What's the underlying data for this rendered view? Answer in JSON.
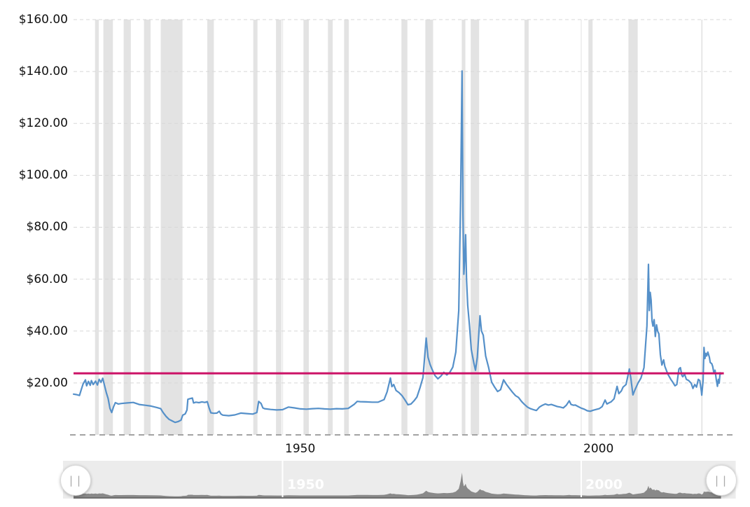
{
  "chart": {
    "y_axis_labels": [
      "$160.00",
      "$140.00",
      "$120.00",
      "$100.00",
      "$80.00",
      "$60.00",
      "$40.00",
      "$20.00"
    ],
    "x_axis_labels": [
      "1950",
      "2000"
    ]
  },
  "navigator": {
    "labels": [
      "1950",
      "2000"
    ],
    "handle_glyph": "||"
  },
  "colors": {
    "price_line": "#5590c9",
    "current_price_line": "#cc1166",
    "recession_band": "#e3e3e3",
    "gridline": "#d7d7d7",
    "axis_line": "#a3a3a3",
    "nav_track": "#ececec",
    "nav_track_unselected": "#f5f5f5",
    "nav_series": "#898989",
    "nav_baseline": "#6f6f6f",
    "axis_text": "#111111",
    "nav_label_text": "#ffffff"
  },
  "chart_data": {
    "type": "line",
    "title": "",
    "x_unit": "year",
    "xlim": [
      1915,
      2025
    ],
    "ylim": [
      0,
      160
    ],
    "x_ticks": [
      1950,
      2000
    ],
    "y_ticks": [
      160,
      140,
      120,
      100,
      80,
      60,
      40,
      20
    ],
    "y_tick_labels": [
      "$160.00",
      "$140.00",
      "$120.00",
      "$100.00",
      "$80.00",
      "$60.00",
      "$40.00",
      "$20.00"
    ],
    "grid": "dashed",
    "legend": "none",
    "current_price_line_value": 23.7,
    "recession_bands": [
      [
        1918.6,
        1919.25
      ],
      [
        1920.0,
        1921.6
      ],
      [
        1923.4,
        1924.6
      ],
      [
        1926.8,
        1927.9
      ],
      [
        1929.6,
        1933.25
      ],
      [
        1937.4,
        1938.5
      ],
      [
        1945.1,
        1945.8
      ],
      [
        1948.9,
        1949.8
      ],
      [
        1953.5,
        1954.4
      ],
      [
        1957.6,
        1958.4
      ],
      [
        1960.3,
        1961.1
      ],
      [
        1969.9,
        1970.9
      ],
      [
        1973.9,
        1975.2
      ],
      [
        1980.0,
        1980.6
      ],
      [
        1981.5,
        1982.9
      ],
      [
        1990.5,
        1991.2
      ],
      [
        2001.2,
        2001.9
      ],
      [
        2007.9,
        2009.45
      ],
      [
        2020.1,
        2020.3
      ]
    ],
    "series": [
      {
        "name": "price-usd-per-oz-inflation-adjusted",
        "points": [
          [
            1915,
            15.7
          ],
          [
            1915.5,
            15.5
          ],
          [
            1916,
            15.2
          ],
          [
            1916.3,
            17.4
          ],
          [
            1916.6,
            19.6
          ],
          [
            1917,
            21.2
          ],
          [
            1917.2,
            18.9
          ],
          [
            1917.5,
            20.6
          ],
          [
            1917.8,
            19.1
          ],
          [
            1918,
            20.9
          ],
          [
            1918.3,
            19.4
          ],
          [
            1918.7,
            20.7
          ],
          [
            1919,
            19.2
          ],
          [
            1919.3,
            21.4
          ],
          [
            1919.6,
            20.3
          ],
          [
            1919.9,
            21.8
          ],
          [
            1920.2,
            19.0
          ],
          [
            1920.5,
            16.2
          ],
          [
            1920.8,
            14.0
          ],
          [
            1921.1,
            10.2
          ],
          [
            1921.4,
            8.6
          ],
          [
            1921.7,
            10.8
          ],
          [
            1922,
            12.4
          ],
          [
            1922.5,
            11.9
          ],
          [
            1923,
            12.1
          ],
          [
            1924,
            12.3
          ],
          [
            1925,
            12.5
          ],
          [
            1926,
            11.7
          ],
          [
            1927,
            11.4
          ],
          [
            1928,
            11.1
          ],
          [
            1929,
            10.5
          ],
          [
            1929.6,
            10.1
          ],
          [
            1930,
            8.6
          ],
          [
            1930.5,
            7.1
          ],
          [
            1931,
            6.0
          ],
          [
            1931.5,
            5.4
          ],
          [
            1932,
            4.8
          ],
          [
            1932.5,
            5.1
          ],
          [
            1933,
            5.7
          ],
          [
            1933.3,
            7.6
          ],
          [
            1933.7,
            8.1
          ],
          [
            1934,
            9.6
          ],
          [
            1934.15,
            13.7
          ],
          [
            1934.6,
            14.0
          ],
          [
            1934.9,
            14.2
          ],
          [
            1935.1,
            12.3
          ],
          [
            1935.5,
            12.6
          ],
          [
            1936,
            12.4
          ],
          [
            1936.5,
            12.7
          ],
          [
            1937,
            12.5
          ],
          [
            1937.4,
            12.8
          ],
          [
            1937.7,
            10.4
          ],
          [
            1938,
            8.5
          ],
          [
            1938.5,
            8.3
          ],
          [
            1939,
            8.4
          ],
          [
            1939.4,
            9.1
          ],
          [
            1939.7,
            8.0
          ],
          [
            1940,
            7.6
          ],
          [
            1941,
            7.4
          ],
          [
            1942,
            7.7
          ],
          [
            1943,
            8.4
          ],
          [
            1944,
            8.2
          ],
          [
            1945,
            8.0
          ],
          [
            1945.7,
            8.6
          ],
          [
            1946,
            12.9
          ],
          [
            1946.4,
            12.1
          ],
          [
            1946.7,
            10.4
          ],
          [
            1947,
            10.1
          ],
          [
            1948,
            9.8
          ],
          [
            1949,
            9.6
          ],
          [
            1950,
            9.7
          ],
          [
            1950.6,
            10.3
          ],
          [
            1951,
            10.7
          ],
          [
            1952,
            10.4
          ],
          [
            1953,
            10.0
          ],
          [
            1954,
            9.9
          ],
          [
            1955,
            10.1
          ],
          [
            1956,
            10.2
          ],
          [
            1957,
            10.0
          ],
          [
            1958,
            9.9
          ],
          [
            1959,
            10.1
          ],
          [
            1960,
            10.0
          ],
          [
            1961,
            10.2
          ],
          [
            1962,
            11.8
          ],
          [
            1962.5,
            12.9
          ],
          [
            1963,
            12.8
          ],
          [
            1964,
            12.7
          ],
          [
            1965,
            12.6
          ],
          [
            1966,
            12.6
          ],
          [
            1967,
            13.6
          ],
          [
            1967.5,
            16.6
          ],
          [
            1968.05,
            21.9
          ],
          [
            1968.3,
            18.6
          ],
          [
            1968.6,
            19.4
          ],
          [
            1969,
            17.1
          ],
          [
            1969.5,
            16.3
          ],
          [
            1970,
            15.1
          ],
          [
            1970.5,
            13.4
          ],
          [
            1971,
            11.6
          ],
          [
            1971.5,
            11.9
          ],
          [
            1972,
            13.1
          ],
          [
            1972.5,
            14.6
          ],
          [
            1973,
            18.1
          ],
          [
            1973.5,
            22.1
          ],
          [
            1974.05,
            37.3
          ],
          [
            1974.35,
            29.9
          ],
          [
            1974.7,
            27.1
          ],
          [
            1975,
            25.4
          ],
          [
            1975.5,
            22.9
          ],
          [
            1976,
            21.6
          ],
          [
            1976.5,
            22.6
          ],
          [
            1977,
            24.1
          ],
          [
            1977.5,
            23.1
          ],
          [
            1978,
            24.1
          ],
          [
            1978.5,
            26.1
          ],
          [
            1979,
            31.9
          ],
          [
            1979.5,
            47.9
          ],
          [
            1979.8,
            89.9
          ],
          [
            1980.05,
            140.2
          ],
          [
            1980.2,
            84.9
          ],
          [
            1980.35,
            61.9
          ],
          [
            1980.5,
            68.1
          ],
          [
            1980.65,
            77.1
          ],
          [
            1980.8,
            59.9
          ],
          [
            1981,
            49.9
          ],
          [
            1981.3,
            41.9
          ],
          [
            1981.6,
            32.9
          ],
          [
            1982,
            27.9
          ],
          [
            1982.3,
            24.9
          ],
          [
            1982.6,
            29.9
          ],
          [
            1983.05,
            45.9
          ],
          [
            1983.3,
            40.1
          ],
          [
            1983.6,
            38.4
          ],
          [
            1984,
            30.4
          ],
          [
            1984.5,
            25.9
          ],
          [
            1985,
            20.4
          ],
          [
            1985.5,
            18.4
          ],
          [
            1986,
            16.7
          ],
          [
            1986.5,
            17.4
          ],
          [
            1987,
            21.2
          ],
          [
            1987.5,
            19.4
          ],
          [
            1988,
            17.9
          ],
          [
            1988.5,
            16.4
          ],
          [
            1989,
            15.1
          ],
          [
            1989.5,
            14.4
          ],
          [
            1990,
            12.9
          ],
          [
            1990.5,
            11.7
          ],
          [
            1991,
            10.7
          ],
          [
            1991.5,
            10.1
          ],
          [
            1992,
            9.7
          ],
          [
            1992.5,
            9.4
          ],
          [
            1993,
            10.7
          ],
          [
            1993.5,
            11.4
          ],
          [
            1994,
            11.9
          ],
          [
            1994.5,
            11.5
          ],
          [
            1995,
            11.7
          ],
          [
            1995.5,
            11.3
          ],
          [
            1996,
            10.9
          ],
          [
            1996.5,
            10.7
          ],
          [
            1997,
            10.4
          ],
          [
            1997.5,
            11.4
          ],
          [
            1998,
            13.1
          ],
          [
            1998.3,
            11.7
          ],
          [
            1998.7,
            11.4
          ],
          [
            1999,
            11.5
          ],
          [
            1999.5,
            10.9
          ],
          [
            2000,
            10.3
          ],
          [
            2000.5,
            9.9
          ],
          [
            2001,
            9.3
          ],
          [
            2001.5,
            9.1
          ],
          [
            2002,
            9.5
          ],
          [
            2002.5,
            9.8
          ],
          [
            2003,
            10.1
          ],
          [
            2003.5,
            10.9
          ],
          [
            2004,
            13.4
          ],
          [
            2004.3,
            11.9
          ],
          [
            2004.7,
            12.4
          ],
          [
            2005,
            12.7
          ],
          [
            2005.5,
            13.9
          ],
          [
            2006,
            18.7
          ],
          [
            2006.3,
            15.9
          ],
          [
            2006.7,
            16.9
          ],
          [
            2007,
            18.4
          ],
          [
            2007.5,
            19.4
          ],
          [
            2008.05,
            25.4
          ],
          [
            2008.3,
            21.9
          ],
          [
            2008.65,
            15.4
          ],
          [
            2009,
            17.4
          ],
          [
            2009.5,
            19.9
          ],
          [
            2010,
            21.9
          ],
          [
            2010.5,
            25.9
          ],
          [
            2011,
            41.9
          ],
          [
            2011.25,
            65.7
          ],
          [
            2011.4,
            47.9
          ],
          [
            2011.55,
            54.9
          ],
          [
            2011.7,
            51.9
          ],
          [
            2011.85,
            43.9
          ],
          [
            2012,
            41.9
          ],
          [
            2012.2,
            44.4
          ],
          [
            2012.4,
            37.9
          ],
          [
            2012.6,
            42.4
          ],
          [
            2012.8,
            39.9
          ],
          [
            2013,
            38.9
          ],
          [
            2013.25,
            30.9
          ],
          [
            2013.5,
            26.9
          ],
          [
            2013.8,
            28.9
          ],
          [
            2014,
            26.4
          ],
          [
            2014.5,
            23.4
          ],
          [
            2015,
            21.4
          ],
          [
            2015.3,
            20.4
          ],
          [
            2015.7,
            18.9
          ],
          [
            2016,
            19.4
          ],
          [
            2016.35,
            25.4
          ],
          [
            2016.6,
            25.9
          ],
          [
            2016.85,
            22.9
          ],
          [
            2017,
            22.4
          ],
          [
            2017.3,
            23.4
          ],
          [
            2017.6,
            21.4
          ],
          [
            2018,
            20.9
          ],
          [
            2018.4,
            19.9
          ],
          [
            2018.7,
            17.9
          ],
          [
            2019,
            19.4
          ],
          [
            2019.3,
            18.4
          ],
          [
            2019.6,
            21.4
          ],
          [
            2019.85,
            20.9
          ],
          [
            2020.1,
            16.9
          ],
          [
            2020.18,
            15.3
          ],
          [
            2020.4,
            20.9
          ],
          [
            2020.55,
            33.7
          ],
          [
            2020.7,
            29.4
          ],
          [
            2020.85,
            31.4
          ],
          [
            2021,
            30.4
          ],
          [
            2021.2,
            31.9
          ],
          [
            2021.45,
            29.9
          ],
          [
            2021.6,
            27.9
          ],
          [
            2021.85,
            27.4
          ],
          [
            2022,
            26.4
          ],
          [
            2022.2,
            23.9
          ],
          [
            2022.4,
            24.9
          ],
          [
            2022.6,
            21.4
          ],
          [
            2022.8,
            18.7
          ],
          [
            2022.95,
            21.4
          ],
          [
            2023.1,
            19.9
          ],
          [
            2023.25,
            23.9
          ],
          [
            2023.4,
            23.5
          ]
        ]
      }
    ]
  }
}
